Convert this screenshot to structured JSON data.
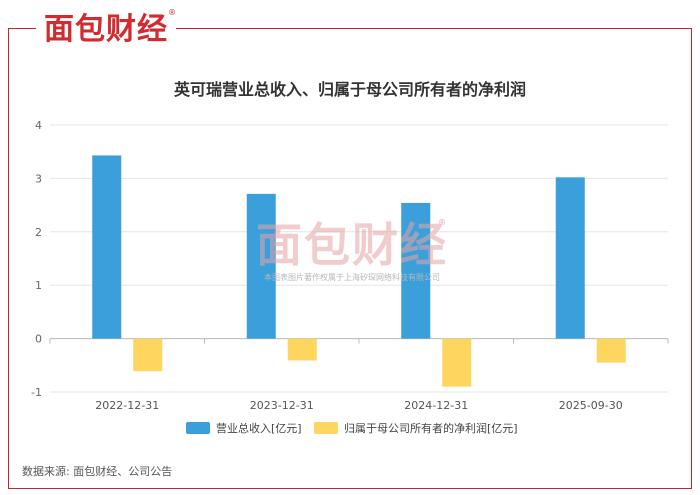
{
  "brand": {
    "logo_text": "面包财经",
    "reg_mark": "®"
  },
  "title": "英可瑞营业总收入、归属于母公司所有者的净利润",
  "source": "数据来源: 面包财经、公司公告",
  "watermark": {
    "logo_text": "面包财经",
    "reg_mark": "®",
    "copyright": "本图表图片著作权属于上海矽琛网络科技有限公司"
  },
  "colors": {
    "revenue": "#3a9fda",
    "profit": "#fdd55f",
    "frame": "#c9242b",
    "grid": "#e6e6e6"
  },
  "chart_data": {
    "type": "bar",
    "categories": [
      "2022-12-31",
      "2023-12-31",
      "2024-12-31",
      "2025-09-30"
    ],
    "series": [
      {
        "name": "营业总收入[亿元]",
        "values": [
          3.43,
          2.71,
          2.54,
          3.02
        ]
      },
      {
        "name": "归属于母公司所有者的净利润[亿元]",
        "values": [
          -0.61,
          -0.41,
          -0.9,
          -0.45
        ]
      }
    ],
    "yticks": [
      "4",
      "3",
      "2",
      "1",
      "0",
      "-1"
    ],
    "ylim": [
      -1,
      4
    ],
    "grid": true,
    "legend": "bottom"
  }
}
